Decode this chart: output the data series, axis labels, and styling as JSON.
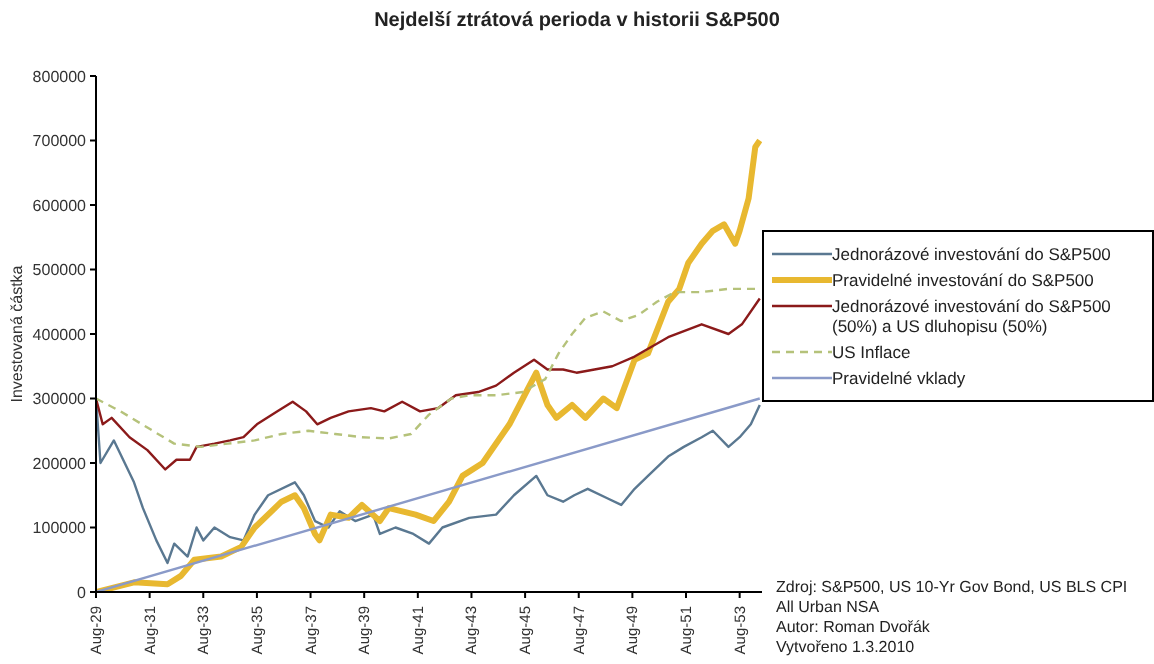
{
  "chart_data": {
    "type": "line",
    "title": "Nejdelší ztrátová perioda v historii S&P500",
    "ylabel": "Investovaná částka",
    "xlim": [
      "1929-08",
      "1954-06"
    ],
    "xticks": [
      {
        "value": "1929-08",
        "label": "Aug-29"
      },
      {
        "value": "1931-08",
        "label": "Aug-31"
      },
      {
        "value": "1933-08",
        "label": "Aug-33"
      },
      {
        "value": "1935-08",
        "label": "Aug-35"
      },
      {
        "value": "1937-08",
        "label": "Aug-37"
      },
      {
        "value": "1939-08",
        "label": "Aug-39"
      },
      {
        "value": "1941-08",
        "label": "Aug-41"
      },
      {
        "value": "1943-08",
        "label": "Aug-43"
      },
      {
        "value": "1945-08",
        "label": "Aug-45"
      },
      {
        "value": "1947-08",
        "label": "Aug-47"
      },
      {
        "value": "1949-08",
        "label": "Aug-49"
      },
      {
        "value": "1951-08",
        "label": "Aug-51"
      },
      {
        "value": "1953-08",
        "label": "Aug-53"
      }
    ],
    "ylim": [
      0,
      800000
    ],
    "yticks": [
      0,
      100000,
      200000,
      300000,
      400000,
      500000,
      600000,
      700000,
      800000
    ],
    "marker": "none",
    "legend": "right",
    "series": [
      {
        "name": "Jednorázové investování do S&P500",
        "color": "#5a7891",
        "line_style": "solid",
        "x": [
          "1929-08",
          "1929-10",
          "1930-04",
          "1931-01",
          "1931-05",
          "1931-11",
          "1932-04",
          "1932-07",
          "1933-01",
          "1933-05",
          "1933-08",
          "1934-01",
          "1934-08",
          "1935-02",
          "1935-07",
          "1936-01",
          "1937-01",
          "1937-05",
          "1937-10",
          "1938-04",
          "1938-09",
          "1939-04",
          "1939-12",
          "1940-03",
          "1940-10",
          "1941-06",
          "1942-01",
          "1942-07",
          "1943-07",
          "1944-07",
          "1945-03",
          "1946-01",
          "1946-06",
          "1947-01",
          "1947-06",
          "1947-12",
          "1948-09",
          "1949-03",
          "1949-09",
          "1950-03",
          "1950-12",
          "1951-07",
          "1952-03",
          "1952-08",
          "1953-03",
          "1953-08",
          "1954-01",
          "1954-05"
        ],
        "values": [
          300000,
          200000,
          235000,
          170000,
          130000,
          80000,
          45000,
          75000,
          55000,
          100000,
          80000,
          100000,
          85000,
          80000,
          120000,
          150000,
          170000,
          150000,
          110000,
          100000,
          125000,
          110000,
          120000,
          90000,
          100000,
          90000,
          75000,
          100000,
          115000,
          120000,
          150000,
          180000,
          150000,
          140000,
          150000,
          160000,
          145000,
          135000,
          160000,
          180000,
          210000,
          225000,
          240000,
          250000,
          225000,
          240000,
          260000,
          290000
        ]
      },
      {
        "name": "Pravidelné investování do S&P500",
        "color": "#e8b830",
        "line_style": "solid",
        "x": [
          "1929-08",
          "1931-01",
          "1932-04",
          "1932-10",
          "1933-04",
          "1934-04",
          "1935-01",
          "1935-07",
          "1936-07",
          "1937-01",
          "1937-05",
          "1937-10",
          "1937-12",
          "1938-05",
          "1939-01",
          "1939-07",
          "1940-03",
          "1940-07",
          "1941-07",
          "1942-03",
          "1942-10",
          "1943-04",
          "1944-01",
          "1945-01",
          "1945-07",
          "1946-01",
          "1946-06",
          "1946-10",
          "1947-05",
          "1947-11",
          "1948-07",
          "1949-01",
          "1949-09",
          "1950-03",
          "1950-12",
          "1951-05",
          "1951-09",
          "1952-03",
          "1952-08",
          "1953-01",
          "1953-06",
          "1953-08",
          "1953-12",
          "1954-03",
          "1954-05"
        ],
        "values": [
          0,
          15000,
          12000,
          25000,
          50000,
          55000,
          70000,
          100000,
          140000,
          150000,
          130000,
          90000,
          80000,
          120000,
          115000,
          135000,
          110000,
          130000,
          120000,
          110000,
          140000,
          180000,
          200000,
          260000,
          300000,
          340000,
          290000,
          270000,
          290000,
          270000,
          300000,
          285000,
          360000,
          370000,
          450000,
          470000,
          510000,
          540000,
          560000,
          570000,
          540000,
          560000,
          610000,
          690000,
          700000
        ]
      },
      {
        "name": "Jednorázové investování do S&P500 (50%) a US dluhopisu (50%)",
        "color": "#8b1a1a",
        "line_style": "solid",
        "x": [
          "1929-08",
          "1929-11",
          "1930-03",
          "1930-11",
          "1931-07",
          "1932-03",
          "1932-08",
          "1933-02",
          "1933-05",
          "1934-01",
          "1934-08",
          "1935-02",
          "1935-08",
          "1936-05",
          "1936-12",
          "1937-06",
          "1937-11",
          "1938-05",
          "1939-01",
          "1939-11",
          "1940-05",
          "1941-01",
          "1941-09",
          "1942-05",
          "1943-01",
          "1943-11",
          "1944-07",
          "1945-03",
          "1945-12",
          "1946-06",
          "1947-01",
          "1947-07",
          "1947-12",
          "1948-11",
          "1949-09",
          "1950-12",
          "1952-03",
          "1953-03",
          "1953-09",
          "1954-05"
        ],
        "values": [
          300000,
          260000,
          270000,
          240000,
          220000,
          190000,
          205000,
          205000,
          225000,
          230000,
          235000,
          240000,
          260000,
          280000,
          295000,
          280000,
          260000,
          270000,
          280000,
          285000,
          280000,
          295000,
          280000,
          285000,
          305000,
          310000,
          320000,
          340000,
          360000,
          345000,
          345000,
          340000,
          343000,
          350000,
          365000,
          395000,
          415000,
          400000,
          415000,
          455000
        ]
      },
      {
        "name": "US Inflace",
        "color": "#b5c27a",
        "line_style": "dashed",
        "x": [
          "1929-08",
          "1930-07",
          "1931-07",
          "1932-07",
          "1933-07",
          "1934-07",
          "1935-07",
          "1936-07",
          "1937-07",
          "1938-07",
          "1939-07",
          "1940-07",
          "1941-05",
          "1942-01",
          "1942-11",
          "1943-07",
          "1944-07",
          "1945-07",
          "1946-05",
          "1946-11",
          "1947-05",
          "1947-11",
          "1948-07",
          "1949-03",
          "1949-11",
          "1950-07",
          "1951-03",
          "1952-03",
          "1953-03",
          "1954-05"
        ],
        "values": [
          300000,
          280000,
          255000,
          230000,
          225000,
          230000,
          235000,
          245000,
          250000,
          245000,
          240000,
          238000,
          245000,
          275000,
          300000,
          305000,
          305000,
          310000,
          330000,
          370000,
          400000,
          425000,
          435000,
          420000,
          430000,
          450000,
          465000,
          465000,
          470000,
          470000
        ]
      },
      {
        "name": "Pravidelné vklady",
        "color": "#8a9ac8",
        "line_style": "solid",
        "x": [
          "1929-08",
          "1954-05"
        ],
        "values": [
          0,
          300000
        ]
      }
    ],
    "annotations": [
      "Zdroj: S&P500, US 10-Yr Gov Bond, US BLS CPI All Urban NSA",
      "Autor: Roman Dvořák",
      "Vytvořeno 1.3.2010"
    ]
  }
}
